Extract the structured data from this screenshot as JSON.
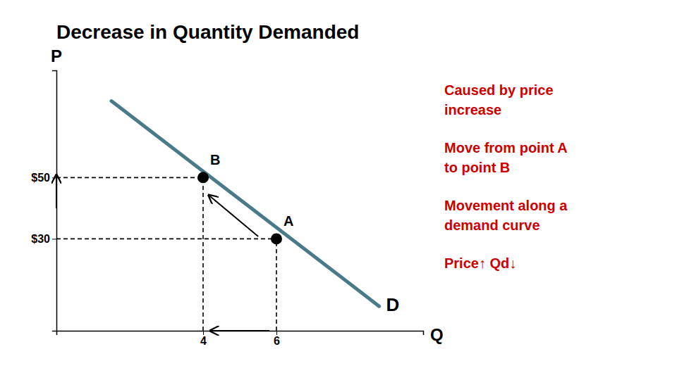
{
  "chart_data": {
    "type": "line",
    "title": "Decrease in Quantity Demanded",
    "x_label": "Q",
    "y_label": "P",
    "xlim": [
      0,
      10
    ],
    "ylim": [
      0,
      85
    ],
    "xticks": [
      4,
      6
    ],
    "yticks": [
      {
        "value": 50,
        "label": "$50"
      },
      {
        "value": 30,
        "label": "$30"
      }
    ],
    "grid": false,
    "series": [
      {
        "name": "D",
        "type": "line",
        "color": "#4A7A8A",
        "x": [
          1.5,
          8.8
        ],
        "values": [
          75,
          8
        ]
      },
      {
        "name": "A",
        "type": "scatter",
        "color": "#000000",
        "x": [
          6
        ],
        "values": [
          30
        ]
      },
      {
        "name": "B",
        "type": "scatter",
        "color": "#000000",
        "x": [
          4
        ],
        "values": [
          50
        ]
      }
    ],
    "annotations": [
      {
        "lines": [
          "Caused by price",
          "increase"
        ],
        "color": "#CC0000"
      },
      {
        "lines": [
          "Move from point A",
          "to point B"
        ],
        "color": "#CC0000"
      },
      {
        "lines": [
          "Movement along a",
          "demand curve"
        ],
        "color": "#CC0000"
      },
      {
        "lines": [
          "Price↑ Qd↓"
        ],
        "color": "#CC0000"
      }
    ]
  }
}
